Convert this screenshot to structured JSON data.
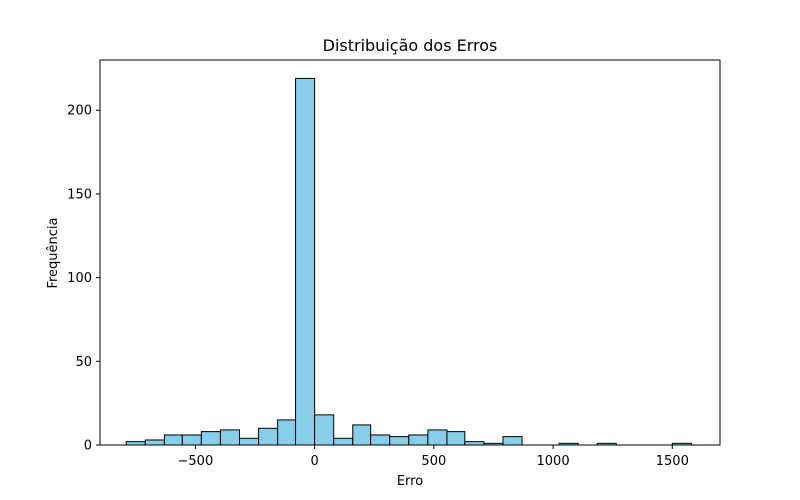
{
  "chart_data": {
    "type": "bar",
    "title": "Distribuição dos Erros",
    "xlabel": "Erro",
    "ylabel": "Frequência",
    "xlim": [
      -900,
      1700
    ],
    "ylim": [
      0,
      230
    ],
    "bar_color": "#87ceeb",
    "edge_color": "#000000",
    "grid": false,
    "bins": [
      {
        "x0": -790,
        "x1": -710,
        "count": 2
      },
      {
        "x0": -710,
        "x1": -630,
        "count": 3
      },
      {
        "x0": -630,
        "x1": -555,
        "count": 6
      },
      {
        "x0": -555,
        "x1": -475,
        "count": 6
      },
      {
        "x0": -475,
        "x1": -395,
        "count": 8
      },
      {
        "x0": -395,
        "x1": -315,
        "count": 9
      },
      {
        "x0": -315,
        "x1": -235,
        "count": 4
      },
      {
        "x0": -235,
        "x1": -155,
        "count": 10
      },
      {
        "x0": -155,
        "x1": -80,
        "count": 15
      },
      {
        "x0": -80,
        "x1": 0,
        "count": 219
      },
      {
        "x0": 0,
        "x1": 80,
        "count": 18
      },
      {
        "x0": 80,
        "x1": 160,
        "count": 4
      },
      {
        "x0": 160,
        "x1": 235,
        "count": 12
      },
      {
        "x0": 235,
        "x1": 315,
        "count": 6
      },
      {
        "x0": 315,
        "x1": 395,
        "count": 5
      },
      {
        "x0": 395,
        "x1": 475,
        "count": 6
      },
      {
        "x0": 475,
        "x1": 555,
        "count": 9
      },
      {
        "x0": 555,
        "x1": 630,
        "count": 8
      },
      {
        "x0": 630,
        "x1": 710,
        "count": 2
      },
      {
        "x0": 710,
        "x1": 790,
        "count": 1
      },
      {
        "x0": 790,
        "x1": 870,
        "count": 5
      },
      {
        "x0": 870,
        "x1": 950,
        "count": 0
      },
      {
        "x0": 950,
        "x1": 1025,
        "count": 0
      },
      {
        "x0": 1025,
        "x1": 1105,
        "count": 1
      },
      {
        "x0": 1105,
        "x1": 1185,
        "count": 0
      },
      {
        "x0": 1185,
        "x1": 1265,
        "count": 1
      },
      {
        "x0": 1265,
        "x1": 1345,
        "count": 0
      },
      {
        "x0": 1345,
        "x1": 1420,
        "count": 0
      },
      {
        "x0": 1420,
        "x1": 1500,
        "count": 0
      },
      {
        "x0": 1500,
        "x1": 1580,
        "count": 1
      }
    ],
    "x_ticks": [
      {
        "value": -500,
        "label": "−500"
      },
      {
        "value": 0,
        "label": "0"
      },
      {
        "value": 500,
        "label": "500"
      },
      {
        "value": 1000,
        "label": "1000"
      },
      {
        "value": 1500,
        "label": "1500"
      }
    ],
    "y_ticks": [
      {
        "value": 0,
        "label": "0"
      },
      {
        "value": 50,
        "label": "50"
      },
      {
        "value": 100,
        "label": "100"
      },
      {
        "value": 150,
        "label": "150"
      },
      {
        "value": 200,
        "label": "200"
      }
    ]
  }
}
